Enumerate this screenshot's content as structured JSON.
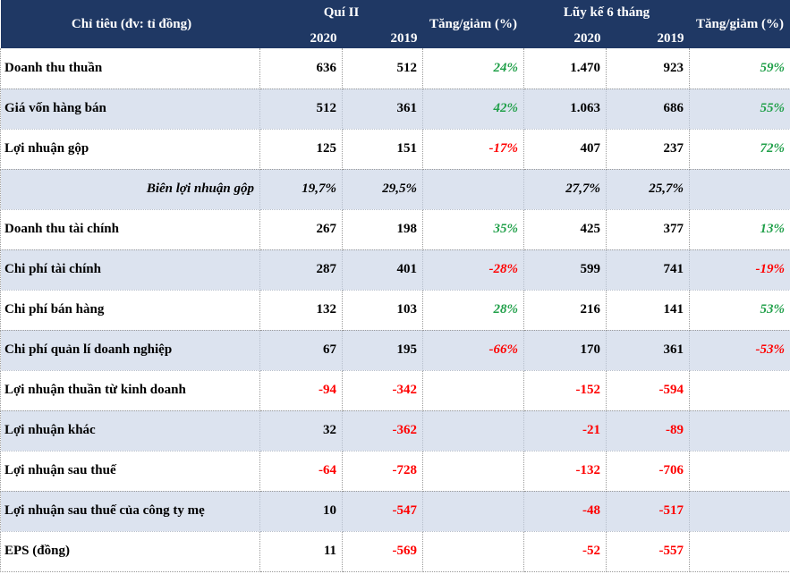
{
  "header": {
    "indicator_label": "Chỉ tiêu (đv: tỉ đồng)",
    "group_q2": "Quí II",
    "group_ytd": "Lũy kế 6 tháng",
    "change_label": "Tăng/giảm (%)",
    "year_2020": "2020",
    "year_2019": "2019"
  },
  "rows": [
    {
      "label": "Doanh thu thuần",
      "q2_2020": "636",
      "q2_2019": "512",
      "q2_change": "24%",
      "ytd_2020": "1.470",
      "ytd_2019": "923",
      "ytd_change": "59%"
    },
    {
      "label": "Giá vốn hàng bán",
      "q2_2020": "512",
      "q2_2019": "361",
      "q2_change": "42%",
      "ytd_2020": "1.063",
      "ytd_2019": "686",
      "ytd_change": "55%"
    },
    {
      "label": "Lợi nhuận gộp",
      "q2_2020": "125",
      "q2_2019": "151",
      "q2_change": "-17%",
      "ytd_2020": "407",
      "ytd_2019": "237",
      "ytd_change": "72%"
    },
    {
      "label": "Biên lợi nhuận gộp",
      "q2_2020": "19,7%",
      "q2_2019": "29,5%",
      "q2_change": "",
      "ytd_2020": "27,7%",
      "ytd_2019": "25,7%",
      "ytd_change": ""
    },
    {
      "label": "Doanh thu tài chính",
      "q2_2020": "267",
      "q2_2019": "198",
      "q2_change": "35%",
      "ytd_2020": "425",
      "ytd_2019": "377",
      "ytd_change": "13%"
    },
    {
      "label": "Chi phí tài chính",
      "q2_2020": "287",
      "q2_2019": "401",
      "q2_change": "-28%",
      "ytd_2020": "599",
      "ytd_2019": "741",
      "ytd_change": "-19%"
    },
    {
      "label": "Chi phí bán hàng",
      "q2_2020": "132",
      "q2_2019": "103",
      "q2_change": "28%",
      "ytd_2020": "216",
      "ytd_2019": "141",
      "ytd_change": "53%"
    },
    {
      "label": "Chi phí quản lí doanh nghiệp",
      "q2_2020": "67",
      "q2_2019": "195",
      "q2_change": "-66%",
      "ytd_2020": "170",
      "ytd_2019": "361",
      "ytd_change": "-53%"
    },
    {
      "label": "Lợi nhuận thuần từ kinh doanh",
      "q2_2020": "-94",
      "q2_2019": "-342",
      "q2_change": "",
      "ytd_2020": "-152",
      "ytd_2019": "-594",
      "ytd_change": ""
    },
    {
      "label": "Lợi nhuận khác",
      "q2_2020": "32",
      "q2_2019": "-362",
      "q2_change": "",
      "ytd_2020": "-21",
      "ytd_2019": "-89",
      "ytd_change": ""
    },
    {
      "label": "Lợi nhuận sau thuế",
      "q2_2020": "-64",
      "q2_2019": "-728",
      "q2_change": "",
      "ytd_2020": "-132",
      "ytd_2019": "-706",
      "ytd_change": ""
    },
    {
      "label": "Lợi nhuận sau thuế của công ty mẹ",
      "q2_2020": "10",
      "q2_2019": "-547",
      "q2_change": "",
      "ytd_2020": "-48",
      "ytd_2019": "-517",
      "ytd_change": ""
    },
    {
      "label": "EPS (đồng)",
      "q2_2020": "11",
      "q2_2019": "-569",
      "q2_change": "",
      "ytd_2020": "-52",
      "ytd_2019": "-557",
      "ytd_change": ""
    }
  ],
  "colors": {
    "header_bg": "#1f3864",
    "shade_bg": "#dce3ef",
    "positive": "#21a04a",
    "negative": "#ff0000"
  }
}
